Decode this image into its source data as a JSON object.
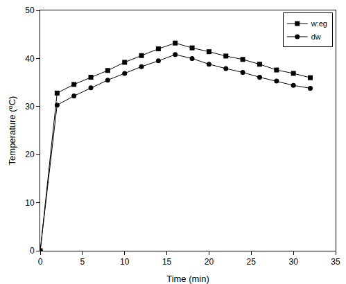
{
  "chart_data": {
    "type": "line",
    "x_label": "Time (min)",
    "y_label": "Temperature (⁰C)",
    "x": [
      0,
      2,
      4,
      6,
      8,
      10,
      12,
      14,
      16,
      18,
      20,
      22,
      24,
      26,
      28,
      30,
      32
    ],
    "series": [
      {
        "name": "w:eg",
        "color": "#000000",
        "marker": "square",
        "line_style": "solid",
        "values": [
          0,
          32.8,
          34.6,
          36.1,
          37.5,
          39.2,
          40.6,
          42.0,
          43.2,
          42.2,
          41.4,
          40.5,
          39.8,
          38.8,
          37.6,
          36.9,
          36.0
        ]
      },
      {
        "name": "dw",
        "color": "#000000",
        "marker": "circle",
        "line_style": "solid",
        "values": [
          0,
          30.3,
          32.2,
          33.9,
          35.5,
          36.9,
          38.3,
          39.5,
          40.8,
          40.0,
          38.8,
          37.9,
          37.1,
          36.1,
          35.3,
          34.4,
          33.8
        ]
      }
    ],
    "xlim": [
      0,
      35
    ],
    "xticks": [
      0,
      5,
      10,
      15,
      20,
      25,
      30,
      35
    ],
    "ylim": [
      0,
      50
    ],
    "yticks": [
      0,
      10,
      20,
      30,
      40,
      50
    ],
    "grid": false,
    "legend": "upper right"
  }
}
